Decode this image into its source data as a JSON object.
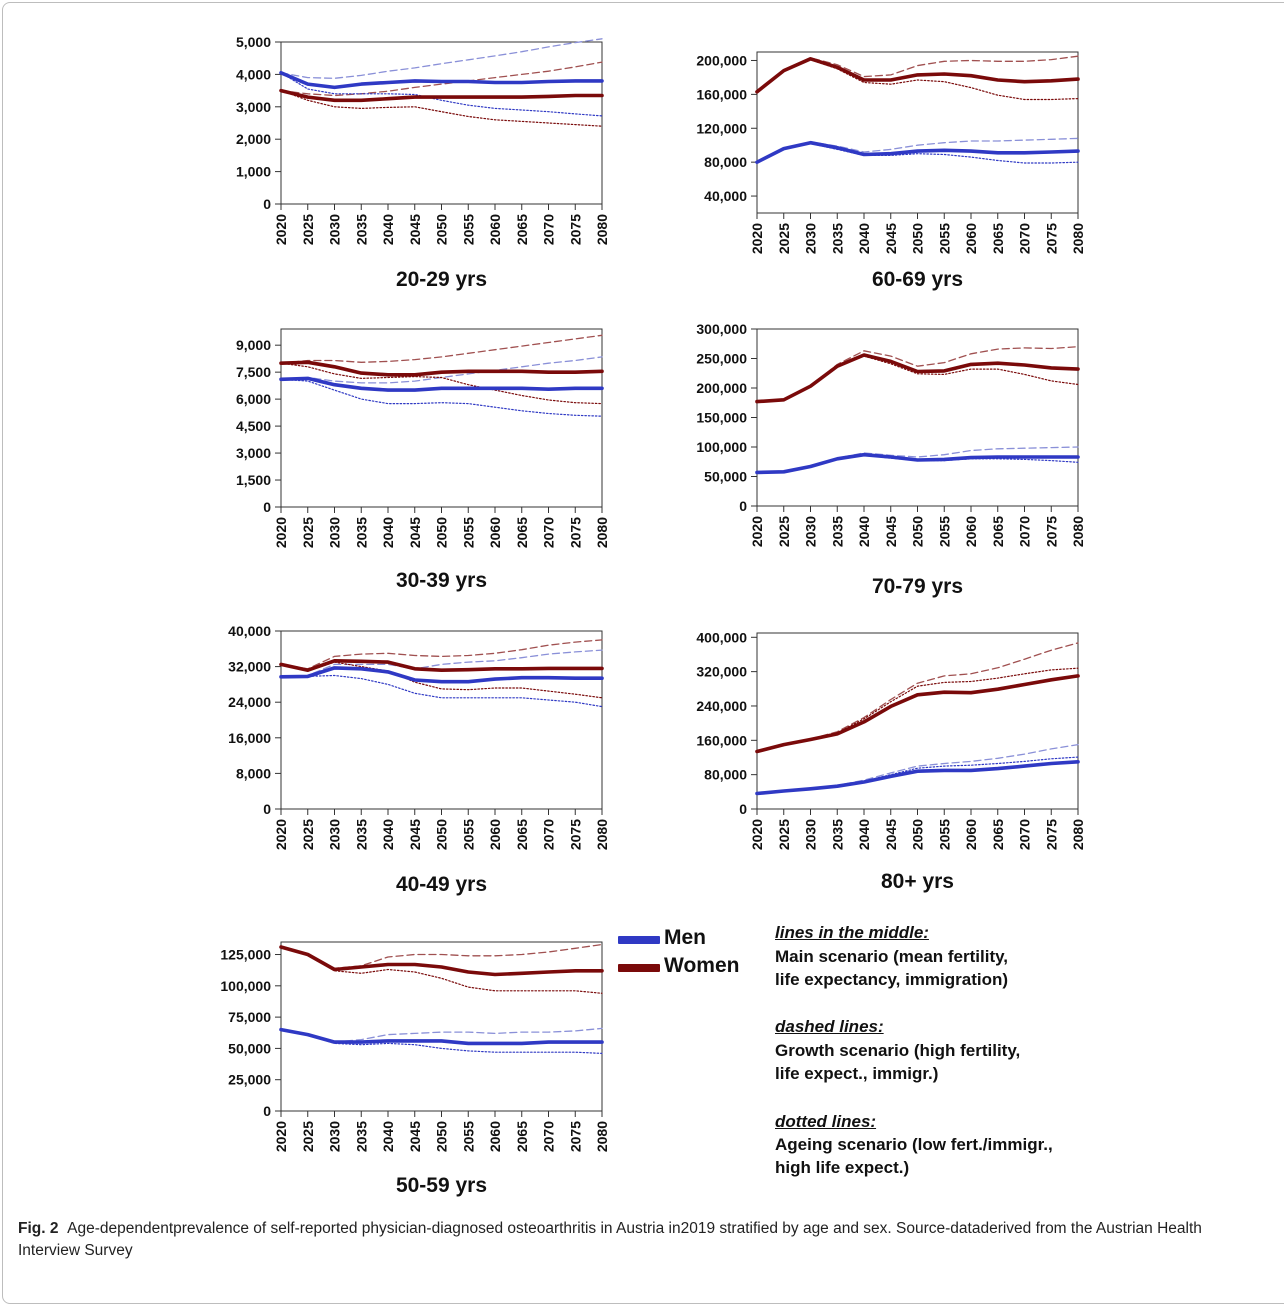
{
  "figure": {
    "caption_label": "Fig. 2",
    "caption_text": "Age-dependentprevalence of self-reported physician-diagnosed osteoarthritis in Austria in2019 stratified by age and sex. Source-dataderived from the Austrian Health Interview Survey"
  },
  "legend": {
    "men_label": "Men",
    "women_label": "Women",
    "men_color": "#2f39c4",
    "women_color": "#7a0a0a",
    "men_light": "#8a90d8",
    "women_light": "#a05050"
  },
  "notes": {
    "middle_head": "lines in the middle:",
    "middle_1": "Main scenario (mean fertility,",
    "middle_2": "life expectancy, immigration)",
    "dashed_head": "dashed lines:",
    "dashed_1": "Growth scenario (high fertility,",
    "dashed_2": "life expect., immigr.)",
    "dotted_head": "dotted lines:",
    "dotted_1": "Ageing scenario (low fert./immigr.,",
    "dotted_2": "high life expect.)"
  },
  "chart_data": [
    {
      "type": "line",
      "title": "20-29 yrs",
      "x": [
        2020,
        2025,
        2030,
        2035,
        2040,
        2045,
        2050,
        2055,
        2060,
        2065,
        2070,
        2075,
        2080
      ],
      "ylim": [
        0,
        5000
      ],
      "yticks": [
        0,
        1000,
        2000,
        3000,
        4000,
        5000
      ],
      "series": [
        {
          "name": "Men",
          "scenario": "main",
          "values": [
            4050,
            3700,
            3600,
            3700,
            3750,
            3800,
            3780,
            3780,
            3750,
            3750,
            3780,
            3800,
            3800
          ]
        },
        {
          "name": "Men",
          "scenario": "growth",
          "values": [
            4050,
            3900,
            3880,
            3970,
            4100,
            4200,
            4330,
            4450,
            4570,
            4700,
            4850,
            4980,
            5100
          ]
        },
        {
          "name": "Men",
          "scenario": "ageing",
          "values": [
            4050,
            3550,
            3400,
            3400,
            3400,
            3380,
            3200,
            3050,
            2950,
            2900,
            2850,
            2780,
            2720
          ]
        },
        {
          "name": "Women",
          "scenario": "main",
          "values": [
            3500,
            3300,
            3200,
            3200,
            3250,
            3300,
            3300,
            3300,
            3300,
            3300,
            3320,
            3350,
            3350
          ]
        },
        {
          "name": "Women",
          "scenario": "growth",
          "values": [
            3500,
            3400,
            3350,
            3400,
            3480,
            3600,
            3700,
            3800,
            3900,
            4000,
            4100,
            4230,
            4380
          ]
        },
        {
          "name": "Women",
          "scenario": "ageing",
          "values": [
            3500,
            3200,
            3000,
            2950,
            2980,
            3000,
            2850,
            2700,
            2600,
            2550,
            2500,
            2450,
            2400
          ]
        }
      ]
    },
    {
      "type": "line",
      "title": "60-69 yrs",
      "x": [
        2020,
        2025,
        2030,
        2035,
        2040,
        2045,
        2050,
        2055,
        2060,
        2065,
        2070,
        2075,
        2080
      ],
      "ylim": [
        20000,
        210000
      ],
      "yticks": [
        40000,
        80000,
        120000,
        160000,
        200000
      ],
      "series": [
        {
          "name": "Men",
          "scenario": "main",
          "values": [
            80000,
            96000,
            103000,
            97000,
            89000,
            90000,
            93000,
            94000,
            93000,
            91000,
            91000,
            92000,
            93000
          ]
        },
        {
          "name": "Men",
          "scenario": "growth",
          "values": [
            80000,
            96000,
            104000,
            99000,
            92000,
            95000,
            100000,
            103000,
            105000,
            105000,
            106000,
            107000,
            108000
          ]
        },
        {
          "name": "Men",
          "scenario": "ageing",
          "values": [
            80000,
            96000,
            102000,
            95000,
            88000,
            88000,
            90000,
            89000,
            86000,
            82000,
            79000,
            79000,
            80000
          ]
        },
        {
          "name": "Women",
          "scenario": "main",
          "values": [
            163000,
            188000,
            202000,
            192000,
            177000,
            177000,
            183000,
            184000,
            182000,
            177000,
            175000,
            176000,
            178000
          ]
        },
        {
          "name": "Women",
          "scenario": "growth",
          "values": [
            163000,
            188000,
            203000,
            195000,
            181000,
            183000,
            194000,
            199000,
            200000,
            199000,
            199000,
            201000,
            205000
          ]
        },
        {
          "name": "Women",
          "scenario": "ageing",
          "values": [
            163000,
            188000,
            201000,
            190000,
            174000,
            172000,
            177000,
            175000,
            168000,
            159000,
            154000,
            154000,
            155000
          ]
        }
      ]
    },
    {
      "type": "line",
      "title": "30-39 yrs",
      "x": [
        2020,
        2025,
        2030,
        2035,
        2040,
        2045,
        2050,
        2055,
        2060,
        2065,
        2070,
        2075,
        2080
      ],
      "ylim": [
        0,
        9900
      ],
      "yticks": [
        0,
        1500,
        3000,
        4500,
        6000,
        7500,
        9000
      ],
      "series": [
        {
          "name": "Men",
          "scenario": "main",
          "values": [
            7100,
            7150,
            6800,
            6600,
            6500,
            6500,
            6600,
            6600,
            6600,
            6600,
            6550,
            6600,
            6600
          ]
        },
        {
          "name": "Men",
          "scenario": "growth",
          "values": [
            7100,
            7200,
            7000,
            6900,
            6900,
            7000,
            7200,
            7400,
            7600,
            7800,
            8000,
            8150,
            8350
          ]
        },
        {
          "name": "Men",
          "scenario": "ageing",
          "values": [
            7100,
            7000,
            6500,
            6000,
            5750,
            5750,
            5800,
            5750,
            5550,
            5350,
            5200,
            5100,
            5050
          ]
        },
        {
          "name": "Women",
          "scenario": "main",
          "values": [
            8000,
            8050,
            7800,
            7450,
            7350,
            7350,
            7500,
            7550,
            7550,
            7550,
            7500,
            7500,
            7550
          ]
        },
        {
          "name": "Women",
          "scenario": "growth",
          "values": [
            8000,
            8150,
            8150,
            8050,
            8100,
            8200,
            8350,
            8550,
            8750,
            8950,
            9150,
            9350,
            9550
          ]
        },
        {
          "name": "Women",
          "scenario": "ageing",
          "values": [
            8000,
            7800,
            7400,
            7150,
            7200,
            7250,
            7200,
            6800,
            6500,
            6200,
            5950,
            5800,
            5750
          ]
        }
      ]
    },
    {
      "type": "line",
      "title": "70-79 yrs",
      "x": [
        2020,
        2025,
        2030,
        2035,
        2040,
        2045,
        2050,
        2055,
        2060,
        2065,
        2070,
        2075,
        2080
      ],
      "ylim": [
        0,
        300000
      ],
      "yticks": [
        0,
        50000,
        100000,
        150000,
        200000,
        250000,
        300000
      ],
      "series": [
        {
          "name": "Men",
          "scenario": "main",
          "values": [
            57000,
            58000,
            67000,
            80000,
            87000,
            83000,
            78000,
            79000,
            82000,
            83000,
            83000,
            83000,
            83000
          ]
        },
        {
          "name": "Men",
          "scenario": "growth",
          "values": [
            57000,
            58000,
            67000,
            81000,
            90000,
            86000,
            83000,
            87000,
            94000,
            97000,
            98000,
            99000,
            100000
          ]
        },
        {
          "name": "Men",
          "scenario": "ageing",
          "values": [
            57000,
            58000,
            67000,
            80000,
            86000,
            81000,
            77000,
            77000,
            80000,
            80000,
            79000,
            77000,
            74000
          ]
        },
        {
          "name": "Women",
          "scenario": "main",
          "values": [
            177000,
            180000,
            203000,
            237000,
            256000,
            245000,
            228000,
            229000,
            240000,
            242000,
            239000,
            234000,
            232000
          ]
        },
        {
          "name": "Women",
          "scenario": "growth",
          "values": [
            177000,
            180000,
            203000,
            240000,
            263000,
            254000,
            237000,
            243000,
            258000,
            266000,
            268000,
            267000,
            270000
          ]
        },
        {
          "name": "Women",
          "scenario": "ageing",
          "values": [
            177000,
            180000,
            203000,
            236000,
            254000,
            241000,
            224000,
            223000,
            232000,
            232000,
            223000,
            212000,
            206000
          ]
        }
      ]
    },
    {
      "type": "line",
      "title": "40-49 yrs",
      "x": [
        2020,
        2025,
        2030,
        2035,
        2040,
        2045,
        2050,
        2055,
        2060,
        2065,
        2070,
        2075,
        2080
      ],
      "ylim": [
        0,
        40000
      ],
      "yticks": [
        0,
        8000,
        16000,
        24000,
        32000,
        40000
      ],
      "series": [
        {
          "name": "Men",
          "scenario": "main",
          "values": [
            29700,
            29800,
            31700,
            31500,
            30800,
            29000,
            28600,
            28600,
            29200,
            29500,
            29500,
            29400,
            29400
          ]
        },
        {
          "name": "Men",
          "scenario": "growth",
          "values": [
            29700,
            30000,
            32500,
            32500,
            32500,
            31500,
            32500,
            33000,
            33300,
            34000,
            34800,
            35300,
            35700
          ]
        },
        {
          "name": "Men",
          "scenario": "ageing",
          "values": [
            29700,
            29800,
            30000,
            29300,
            28000,
            26000,
            25000,
            25000,
            25000,
            25000,
            24500,
            24000,
            23000
          ]
        },
        {
          "name": "Women",
          "scenario": "main",
          "values": [
            32500,
            31200,
            33300,
            33200,
            33000,
            31500,
            31200,
            31300,
            31500,
            31500,
            31600,
            31600,
            31600
          ]
        },
        {
          "name": "Women",
          "scenario": "growth",
          "values": [
            32500,
            31500,
            34300,
            34800,
            35000,
            34500,
            34300,
            34500,
            35000,
            35800,
            36800,
            37500,
            38000
          ]
        },
        {
          "name": "Women",
          "scenario": "ageing",
          "values": [
            32500,
            31000,
            33000,
            32000,
            31000,
            28500,
            27000,
            26800,
            27200,
            27200,
            26500,
            25800,
            25000
          ]
        }
      ]
    },
    {
      "type": "line",
      "title": "80+ yrs",
      "x": [
        2020,
        2025,
        2030,
        2035,
        2040,
        2045,
        2050,
        2055,
        2060,
        2065,
        2070,
        2075,
        2080
      ],
      "ylim": [
        0,
        410000
      ],
      "yticks": [
        0,
        80000,
        160000,
        240000,
        320000,
        400000
      ],
      "series": [
        {
          "name": "Men",
          "scenario": "main",
          "values": [
            36000,
            42000,
            47000,
            53000,
            63000,
            76000,
            88000,
            90000,
            90000,
            94000,
            100000,
            106000,
            110000
          ]
        },
        {
          "name": "Men",
          "scenario": "growth",
          "values": [
            36000,
            42000,
            47000,
            55000,
            67000,
            84000,
            100000,
            106000,
            111000,
            118000,
            128000,
            140000,
            150000
          ]
        },
        {
          "name": "Men",
          "scenario": "ageing",
          "values": [
            36000,
            42000,
            47000,
            54000,
            65000,
            80000,
            95000,
            100000,
            102000,
            106000,
            111000,
            117000,
            121000
          ]
        },
        {
          "name": "Women",
          "scenario": "main",
          "values": [
            134000,
            150000,
            162000,
            175000,
            203000,
            239000,
            266000,
            272000,
            271000,
            279000,
            290000,
            301000,
            310000
          ]
        },
        {
          "name": "Women",
          "scenario": "growth",
          "values": [
            134000,
            150000,
            163000,
            180000,
            213000,
            255000,
            293000,
            310000,
            315000,
            329000,
            349000,
            370000,
            387000
          ]
        },
        {
          "name": "Women",
          "scenario": "ageing",
          "values": [
            134000,
            150000,
            163000,
            178000,
            210000,
            250000,
            286000,
            295000,
            297000,
            305000,
            315000,
            324000,
            328000
          ]
        }
      ]
    },
    {
      "type": "line",
      "title": "50-59 yrs",
      "x": [
        2020,
        2025,
        2030,
        2035,
        2040,
        2045,
        2050,
        2055,
        2060,
        2065,
        2070,
        2075,
        2080
      ],
      "ylim": [
        0,
        135000
      ],
      "yticks": [
        0,
        25000,
        50000,
        75000,
        100000,
        125000
      ],
      "series": [
        {
          "name": "Men",
          "scenario": "main",
          "values": [
            65000,
            61000,
            55000,
            55000,
            56000,
            56000,
            56000,
            54000,
            54000,
            54000,
            55000,
            55000,
            55000
          ]
        },
        {
          "name": "Men",
          "scenario": "growth",
          "values": [
            65000,
            61000,
            55000,
            57000,
            61000,
            62000,
            63000,
            63000,
            62000,
            63000,
            63000,
            64000,
            66000
          ]
        },
        {
          "name": "Men",
          "scenario": "ageing",
          "values": [
            65000,
            61000,
            54000,
            53000,
            54000,
            53000,
            50000,
            48000,
            47000,
            47000,
            47000,
            47000,
            46000
          ]
        },
        {
          "name": "Women",
          "scenario": "main",
          "values": [
            131000,
            125000,
            113000,
            115000,
            117000,
            117000,
            115000,
            111000,
            109000,
            110000,
            111000,
            112000,
            112000
          ]
        },
        {
          "name": "Women",
          "scenario": "growth",
          "values": [
            131000,
            125000,
            114000,
            116000,
            123000,
            125000,
            125000,
            124000,
            124000,
            125000,
            127000,
            130000,
            133000
          ]
        },
        {
          "name": "Women",
          "scenario": "ageing",
          "values": [
            131000,
            125000,
            112000,
            110000,
            113000,
            111000,
            106000,
            99000,
            96000,
            96000,
            96000,
            96000,
            94000
          ]
        }
      ]
    }
  ]
}
